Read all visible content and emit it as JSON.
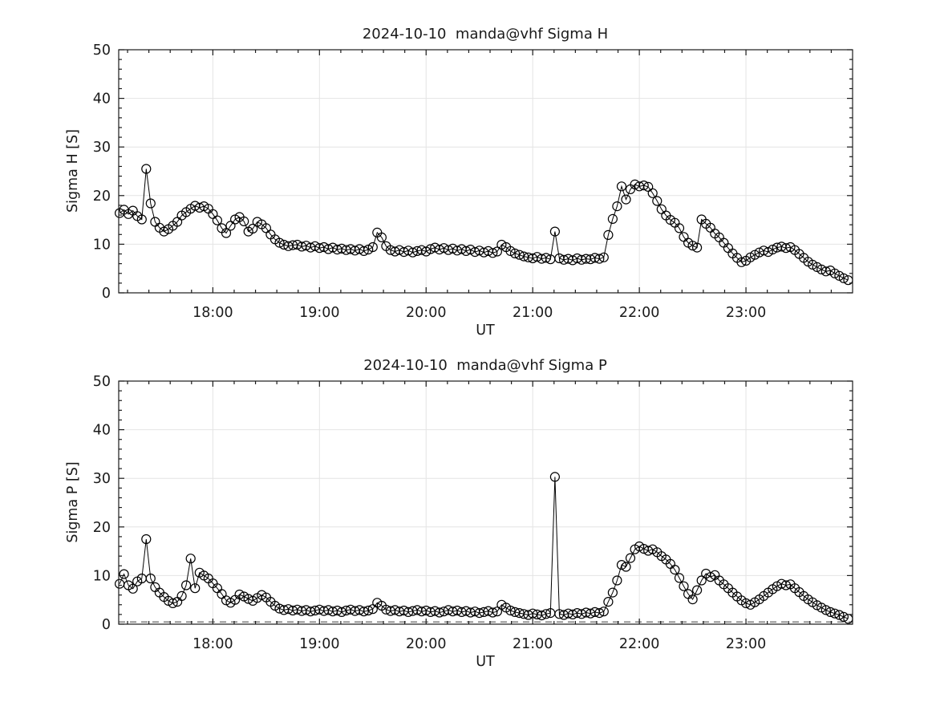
{
  "figure": {
    "background": "#ffffff",
    "text_color": "#1a1a1a",
    "axis_color": "#1a1a1a",
    "grid_color": "#e4e4e4",
    "marker_color": "#000000"
  },
  "chart_data": [
    {
      "type": "line",
      "title": "2024-10-10  manda@vhf Sigma H",
      "xlabel": "UT",
      "ylabel": "Sigma H [S]",
      "ylim": [
        0,
        50
      ],
      "yticks": [
        0,
        10,
        20,
        30,
        40,
        50
      ],
      "y_minor_step": 2,
      "xlim_hours": [
        17.117,
        24.0
      ],
      "xticks_hours": [
        18,
        19,
        20,
        21,
        22,
        23
      ],
      "xtick_labels": [
        "18:00",
        "19:00",
        "20:00",
        "21:00",
        "22:00",
        "23:00"
      ],
      "x_minor_step_hours": 0.2,
      "grid": true,
      "legend": "none",
      "marker": "open-circle",
      "start_hour": 17.125,
      "step_minutes": 2.5,
      "values": [
        16.4,
        17.1,
        16.2,
        16.9,
        15.8,
        15.1,
        25.5,
        18.4,
        14.6,
        13.4,
        12.6,
        13.1,
        13.8,
        14.6,
        15.9,
        16.6,
        17.3,
        17.9,
        17.5,
        17.8,
        17.3,
        16.2,
        14.9,
        13.3,
        12.3,
        13.8,
        15.1,
        15.6,
        14.7,
        12.6,
        13.2,
        14.6,
        14.1,
        13.3,
        12.0,
        11.0,
        10.3,
        9.9,
        9.6,
        9.8,
        9.9,
        9.5,
        9.7,
        9.3,
        9.6,
        9.2,
        9.4,
        9.0,
        9.3,
        8.9,
        9.1,
        8.8,
        9.0,
        8.7,
        9.0,
        8.6,
        8.9,
        9.4,
        12.4,
        11.4,
        9.6,
        8.8,
        8.5,
        8.8,
        8.4,
        8.7,
        8.3,
        8.6,
        8.8,
        8.5,
        9.0,
        9.3,
        8.9,
        9.2,
        8.8,
        9.1,
        8.7,
        9.0,
        8.6,
        8.9,
        8.4,
        8.7,
        8.3,
        8.6,
        8.2,
        8.5,
        9.9,
        9.4,
        8.6,
        8.1,
        7.8,
        7.5,
        7.3,
        7.1,
        7.4,
        7.0,
        7.2,
        6.9,
        12.6,
        7.1,
        6.8,
        7.0,
        6.7,
        7.1,
        6.8,
        7.0,
        6.9,
        7.2,
        7.0,
        7.3,
        11.9,
        15.2,
        17.8,
        21.9,
        19.2,
        21.3,
        22.3,
        21.9,
        22.1,
        21.8,
        20.5,
        18.9,
        17.2,
        15.9,
        15.0,
        14.4,
        13.3,
        11.5,
        10.3,
        9.7,
        9.3,
        15.1,
        14.2,
        13.4,
        12.2,
        11.4,
        10.3,
        9.2,
        8.1,
        7.2,
        6.3,
        6.6,
        7.3,
        7.8,
        8.3,
        8.7,
        8.4,
        8.9,
        9.3,
        9.5,
        9.2,
        9.4,
        8.8,
        8.0,
        7.2,
        6.4,
        5.8,
        5.3,
        4.8,
        4.4,
        4.6,
        4.0,
        3.5,
        3.0,
        2.6
      ]
    },
    {
      "type": "line",
      "title": "2024-10-10  manda@vhf Sigma P",
      "xlabel": "UT",
      "ylabel": "Sigma P [S]",
      "ylim": [
        0,
        50
      ],
      "yticks": [
        0,
        10,
        20,
        30,
        40,
        50
      ],
      "y_minor_step": 2,
      "xlim_hours": [
        17.117,
        24.0
      ],
      "xticks_hours": [
        18,
        19,
        20,
        21,
        22,
        23
      ],
      "xtick_labels": [
        "18:00",
        "19:00",
        "20:00",
        "21:00",
        "22:00",
        "23:00"
      ],
      "x_minor_step_hours": 0.2,
      "grid": true,
      "legend": "none",
      "marker": "open-circle",
      "zero_line": {
        "value": 0.45,
        "style": "dashed",
        "color": "#8c8c8c"
      },
      "start_hour": 17.125,
      "step_minutes": 2.5,
      "values": [
        8.3,
        10.3,
        8.0,
        7.3,
        8.8,
        9.4,
        17.5,
        9.4,
        7.6,
        6.5,
        5.6,
        4.8,
        4.3,
        4.6,
        5.8,
        8.0,
        13.5,
        7.4,
        10.6,
        10.0,
        9.4,
        8.4,
        7.4,
        6.2,
        4.9,
        4.4,
        5.0,
        6.1,
        5.7,
        5.2,
        4.8,
        5.4,
        6.0,
        5.5,
        4.6,
        3.8,
        3.2,
        2.9,
        3.1,
        2.8,
        3.0,
        2.7,
        2.9,
        2.6,
        2.8,
        3.0,
        2.7,
        2.9,
        2.6,
        2.8,
        2.5,
        2.8,
        3.0,
        2.7,
        2.9,
        2.6,
        2.8,
        3.1,
        4.4,
        3.8,
        3.0,
        2.7,
        2.9,
        2.6,
        2.8,
        2.5,
        2.7,
        2.9,
        2.6,
        2.8,
        2.5,
        2.7,
        2.4,
        2.6,
        2.9,
        2.6,
        2.8,
        2.5,
        2.7,
        2.4,
        2.6,
        2.3,
        2.5,
        2.7,
        2.4,
        2.6,
        4.0,
        3.4,
        2.8,
        2.5,
        2.3,
        2.1,
        1.9,
        2.2,
        2.0,
        1.8,
        2.1,
        2.3,
        30.3,
        2.1,
        1.9,
        2.2,
        2.0,
        2.3,
        2.1,
        2.4,
        2.2,
        2.5,
        2.3,
        2.6,
        4.6,
        6.5,
        9.0,
        12.2,
        11.8,
        13.6,
        15.4,
        16.0,
        15.5,
        15.1,
        15.4,
        14.8,
        14.0,
        13.3,
        12.4,
        11.2,
        9.5,
        7.8,
        6.2,
        5.1,
        7.0,
        9.0,
        10.4,
        9.7,
        10.1,
        9.0,
        8.2,
        7.4,
        6.5,
        5.7,
        4.9,
        4.3,
        4.0,
        4.5,
        5.1,
        5.8,
        6.5,
        7.2,
        7.8,
        8.3,
        8.0,
        8.2,
        7.4,
        6.6,
        5.8,
        5.1,
        4.5,
        3.9,
        3.4,
        2.9,
        2.5,
        2.2,
        1.9,
        1.5,
        1.1
      ]
    }
  ]
}
